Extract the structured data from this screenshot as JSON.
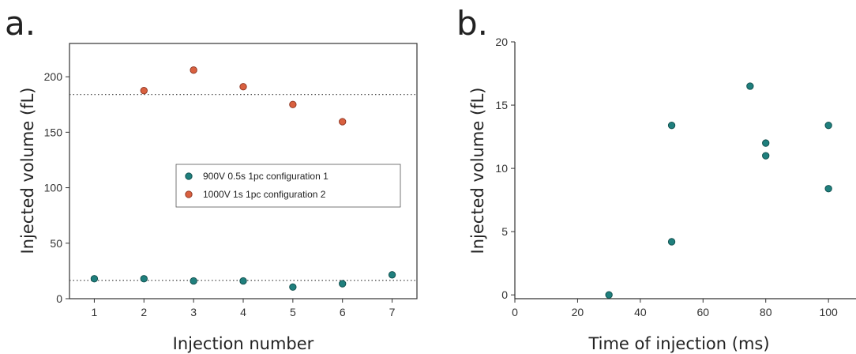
{
  "panels": [
    {
      "letter": "a."
    },
    {
      "letter": "b."
    }
  ],
  "colors": {
    "teal": "#1f7f7d",
    "teal_edge": "#0f4d4b",
    "red": "#d9603f",
    "red_edge": "#8a3320",
    "axis": "#333333",
    "reference_line": "#555555"
  },
  "chart_data": [
    {
      "type": "scatter",
      "xlabel": "Injection number",
      "ylabel": "Injected volume (fL)",
      "xlim": [
        0.5,
        7.5
      ],
      "ylim": [
        0,
        230
      ],
      "xticks": [
        1,
        2,
        3,
        4,
        5,
        6,
        7
      ],
      "yticks": [
        0,
        50,
        100,
        150,
        200
      ],
      "legend_position": "center-right",
      "grid": false,
      "reference_lines": [
        {
          "series": "1000V 1s 1pc configuration 2",
          "y": 184,
          "style": "dotted"
        },
        {
          "series": "900V 0.5s 1pc configuration 1",
          "y": 16.5,
          "style": "dotted"
        }
      ],
      "series": [
        {
          "name": "900V 0.5s 1pc configuration 1",
          "color": "#1f7f7d",
          "x": [
            1,
            2,
            3,
            4,
            5,
            6,
            7
          ],
          "y": [
            18,
            18,
            16,
            16,
            10.5,
            13.5,
            21.5
          ]
        },
        {
          "name": "1000V 1s 1pc configuration 2",
          "color": "#d9603f",
          "x": [
            2,
            3,
            4,
            5,
            6
          ],
          "y": [
            187.5,
            206,
            191,
            175,
            159.5
          ]
        }
      ]
    },
    {
      "type": "scatter",
      "xlabel": "Time of injection (ms)",
      "ylabel": "Injected volume (fL)",
      "xlim": [
        0,
        105
      ],
      "ylim": [
        -0.3,
        20
      ],
      "xticks": [
        0,
        20,
        40,
        60,
        80,
        100
      ],
      "yticks": [
        0,
        5,
        10,
        15,
        20
      ],
      "grid": false,
      "series": [
        {
          "color": "#1f7f7d",
          "x": [
            30,
            50,
            50,
            75,
            80,
            80,
            100,
            100
          ],
          "y": [
            0,
            4.2,
            13.4,
            16.5,
            12,
            11,
            13.4,
            8.4
          ]
        }
      ]
    }
  ]
}
